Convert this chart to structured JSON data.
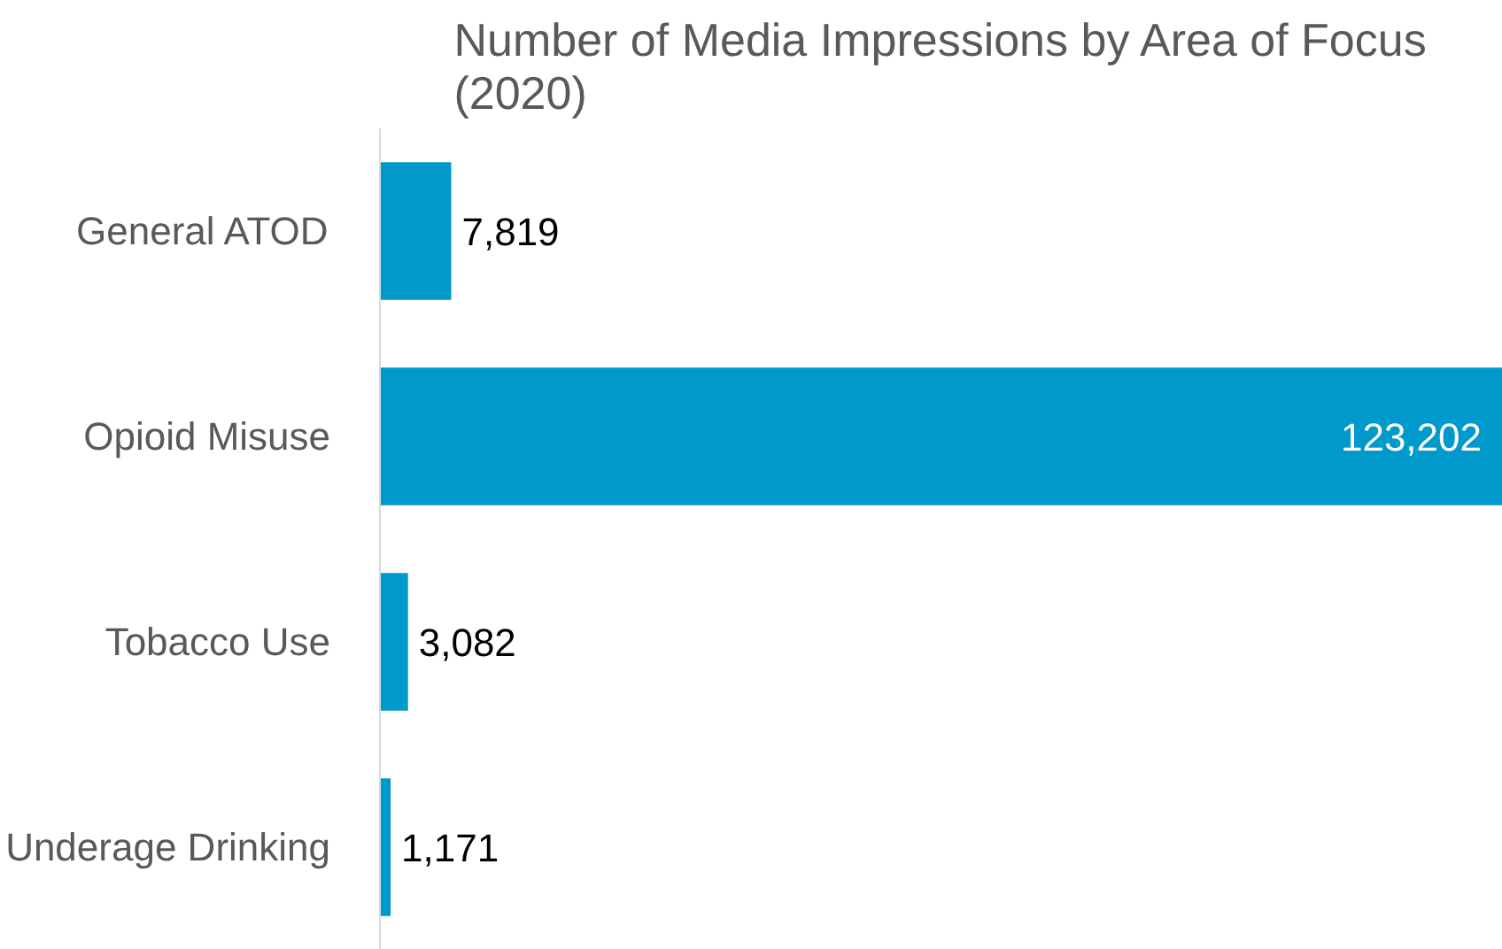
{
  "chart_data": {
    "type": "bar",
    "orientation": "horizontal",
    "title": "Number of Media Impressions by Area of Focus\n(2020)",
    "categories": [
      "General ATOD",
      "Opioid Misuse",
      "Tobacco Use",
      "Underage Drinking"
    ],
    "values": [
      7819,
      123202,
      3082,
      1171
    ],
    "color": "#0099cc",
    "value_labels": [
      "7,819",
      "123,202",
      "3,082",
      "1,171"
    ],
    "data_labels": true,
    "grid": false,
    "legend": false
  }
}
